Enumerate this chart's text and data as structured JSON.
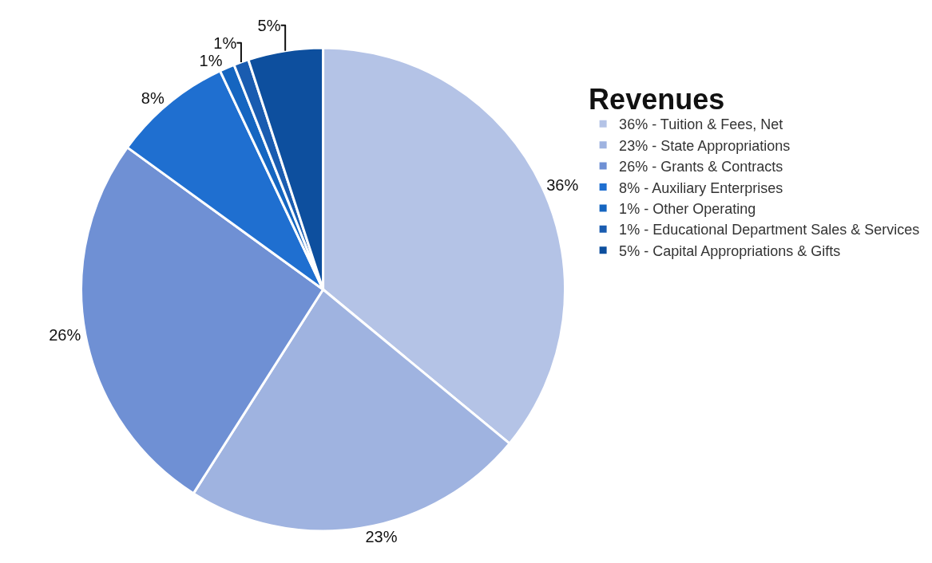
{
  "chart_data": {
    "type": "pie",
    "legend_title": "Revenues",
    "categories": [
      "36% - Tuition & Fees, Net",
      "23% - State Appropriations",
      "26% - Grants & Contracts",
      "8% - Auxiliary Enterprises",
      "1% - Other Operating",
      "1% - Educational Department Sales & Services",
      "5% - Capital Appropriations & Gifts"
    ],
    "values": [
      36,
      23,
      26,
      8,
      1,
      1,
      5
    ],
    "value_labels": [
      "36%",
      "23%",
      "26%",
      "8%",
      "1%",
      "1%",
      "5%"
    ],
    "colors": [
      "#b4c3e6",
      "#9fb3e0",
      "#6f90d4",
      "#1f6fd0",
      "#1565c0",
      "#1a5cb0",
      "#0d4f9e"
    ],
    "legend": "right"
  }
}
